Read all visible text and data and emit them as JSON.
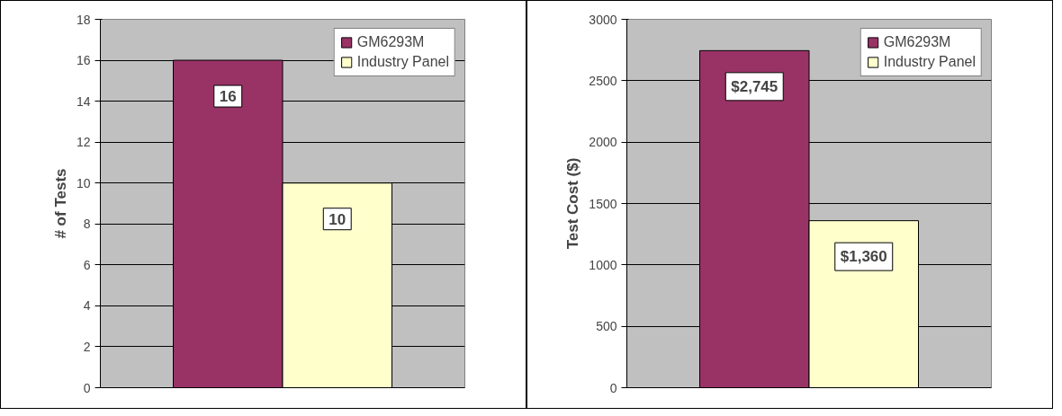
{
  "chart_data": [
    {
      "type": "bar",
      "ylabel": "# of Tests",
      "categories": [
        null
      ],
      "series": [
        {
          "name": "GM6293M",
          "color": "#993366",
          "values": [
            16
          ]
        },
        {
          "name": "Industry Panel",
          "color": "#ffffcc",
          "values": [
            10
          ]
        }
      ],
      "ylim": [
        0,
        18
      ],
      "yticks": [
        0,
        2,
        4,
        6,
        8,
        10,
        12,
        14,
        16,
        18
      ],
      "grid": "y",
      "legend": "top right",
      "data_labels": true
    },
    {
      "type": "bar",
      "ylabel": "Test Cost ($)",
      "categories": [
        null
      ],
      "series": [
        {
          "name": "GM6293M",
          "color": "#993366",
          "values": [
            2745
          ],
          "value_labels": [
            "$2,745"
          ]
        },
        {
          "name": "Industry Panel",
          "color": "#ffffcc",
          "values": [
            1360
          ],
          "value_labels": [
            "$1,360"
          ]
        }
      ],
      "ylim": [
        0,
        3000
      ],
      "yticks": [
        0,
        500,
        1000,
        1500,
        2000,
        2500,
        3000
      ],
      "grid": "y",
      "legend": "top right"
    }
  ]
}
